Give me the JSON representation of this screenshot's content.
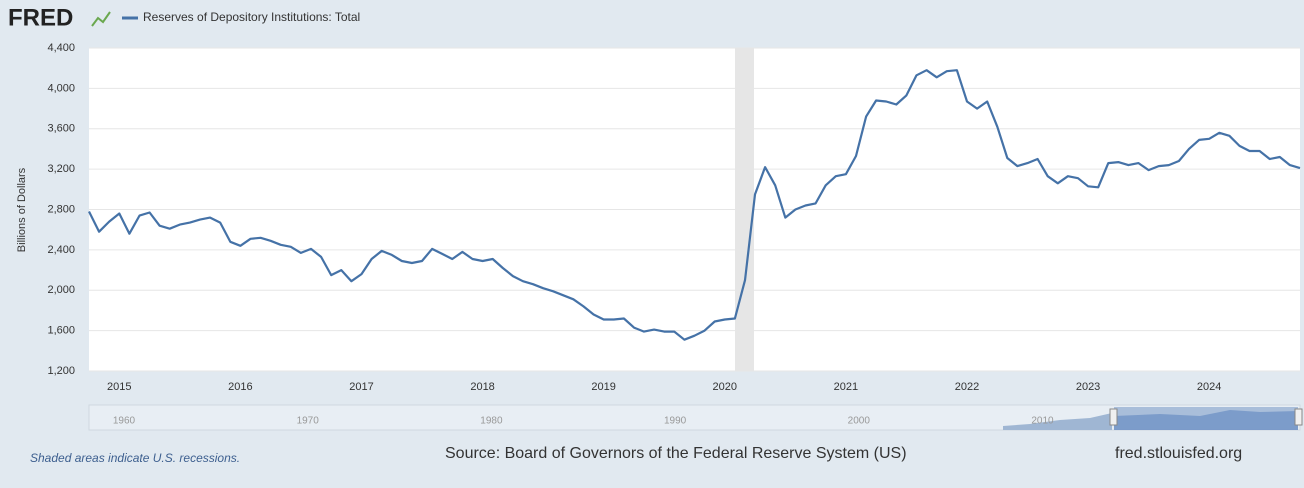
{
  "brand": "FRED",
  "chart_data": {
    "type": "line",
    "y_label": "Billions of Dollars",
    "categories": [
      null,
      null,
      null,
      "2015",
      null,
      null,
      null,
      null,
      null,
      null,
      null,
      null,
      null,
      null,
      null,
      "2016",
      null,
      null,
      null,
      null,
      null,
      null,
      null,
      null,
      null,
      null,
      null,
      "2017",
      null,
      null,
      null,
      null,
      null,
      null,
      null,
      null,
      null,
      null,
      null,
      "2018",
      null,
      null,
      null,
      null,
      null,
      null,
      null,
      null,
      null,
      null,
      null,
      "2019",
      null,
      null,
      null,
      null,
      null,
      null,
      null,
      null,
      null,
      null,
      null,
      "2020",
      null,
      null,
      null,
      null,
      null,
      null,
      null,
      null,
      null,
      null,
      null,
      "2021",
      null,
      null,
      null,
      null,
      null,
      null,
      null,
      null,
      null,
      null,
      null,
      "2022",
      null,
      null,
      null,
      null,
      null,
      null,
      null,
      null,
      null,
      null,
      null,
      "2023",
      null,
      null,
      null,
      null,
      null,
      null,
      null,
      null,
      null,
      null,
      null,
      "2024",
      null,
      null,
      null,
      null,
      null,
      null,
      null,
      null,
      null
    ],
    "series": [
      {
        "name": "Reserves of Depository Institutions: Total",
        "color": "#4572a7",
        "values": [
          2780,
          2580,
          2680,
          2760,
          2560,
          2740,
          2770,
          2640,
          2610,
          2650,
          2670,
          2700,
          2720,
          2670,
          2480,
          2440,
          2510,
          2520,
          2490,
          2450,
          2430,
          2370,
          2410,
          2330,
          2150,
          2200,
          2090,
          2160,
          2310,
          2390,
          2350,
          2290,
          2270,
          2290,
          2410,
          2360,
          2310,
          2380,
          2310,
          2290,
          2310,
          2220,
          2140,
          2090,
          2060,
          2020,
          1990,
          1950,
          1910,
          1840,
          1760,
          1710,
          1710,
          1720,
          1630,
          1590,
          1610,
          1590,
          1590,
          1510,
          1550,
          1600,
          1690,
          1710,
          1720,
          2100,
          2950,
          3220,
          3040,
          2720,
          2800,
          2840,
          2860,
          3040,
          3130,
          3150,
          3330,
          3720,
          3880,
          3870,
          3840,
          3930,
          4130,
          4180,
          4110,
          4170,
          4180,
          3870,
          3800,
          3870,
          3620,
          3310,
          3230,
          3260,
          3300,
          3130,
          3060,
          3130,
          3110,
          3030,
          3020,
          3260,
          3270,
          3240,
          3260,
          3190,
          3230,
          3240,
          3280,
          3400,
          3490,
          3500,
          3560,
          3530,
          3430,
          3380,
          3380,
          3300,
          3320,
          3240,
          3210
        ]
      }
    ],
    "ylim": [
      1200,
      4400
    ],
    "yticks": [
      {
        "value": 1200,
        "label": "1,200"
      },
      {
        "value": 1600,
        "label": "1,600"
      },
      {
        "value": 2000,
        "label": "2,000"
      },
      {
        "value": 2400,
        "label": "2,400"
      },
      {
        "value": 2800,
        "label": "2,800"
      },
      {
        "value": 3200,
        "label": "3,200"
      },
      {
        "value": 3600,
        "label": "3,600"
      },
      {
        "value": 4000,
        "label": "4,000"
      },
      {
        "value": 4400,
        "label": "4,400"
      }
    ],
    "grid": true
  },
  "navigator": {
    "labels": [
      "1960",
      "1970",
      "1980",
      "1990",
      "2000",
      "2010"
    ]
  },
  "footer": {
    "note": "Shaded areas indicate U.S. recessions.",
    "source": "Source: Board of Governors of the Federal Reserve System (US)",
    "site": "fred.stlouisfed.org"
  }
}
